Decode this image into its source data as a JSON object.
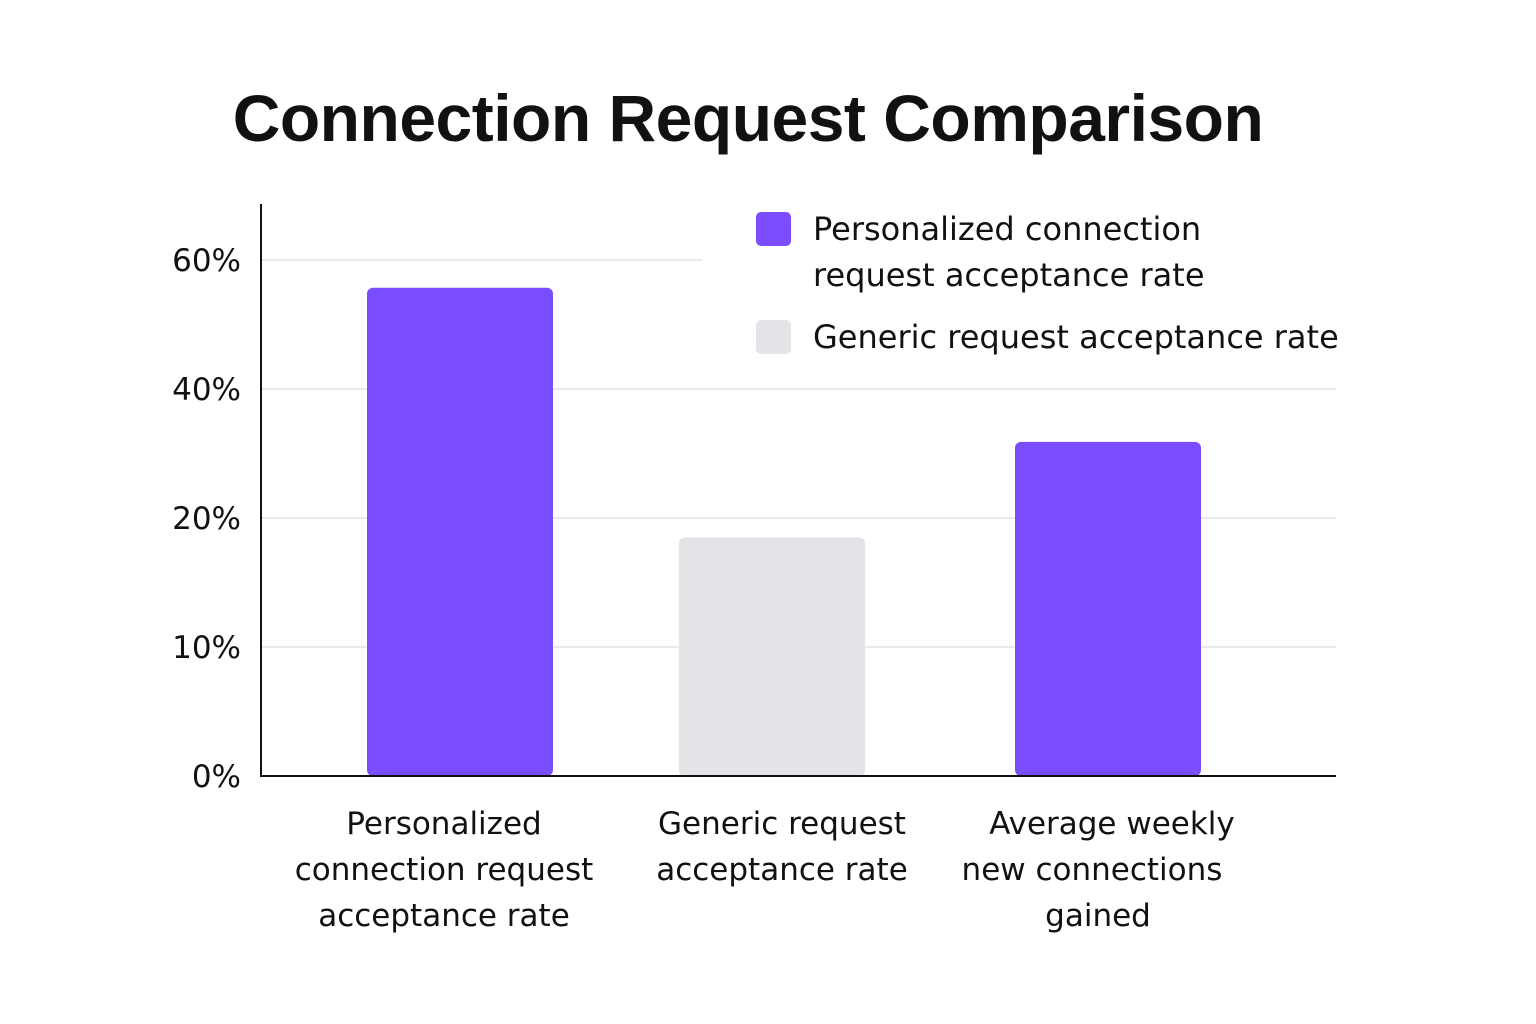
{
  "chart_data": {
    "type": "bar",
    "title": "Connection Request Comparison",
    "xlabel": "",
    "ylabel": "",
    "y_ticks": [
      {
        "value": 0,
        "label": "0%"
      },
      {
        "value": 10,
        "label": "10%"
      },
      {
        "value": 20,
        "label": "20%"
      },
      {
        "value": 40,
        "label": "40%"
      },
      {
        "value": 60,
        "label": "60%"
      }
    ],
    "categories": [
      {
        "lines": [
          "Personalized",
          "connection request",
          "acceptance rate"
        ]
      },
      {
        "lines": [
          "Generic request",
          "acceptance rate"
        ]
      },
      {
        "lines": [
          "Average weekly",
          "new connections",
          "gained"
        ]
      }
    ],
    "values": [
      55.7,
      18.5,
      31.8
    ],
    "bar_colors": [
      "#7a4dff",
      "#e3e3e8",
      "#7a4dff"
    ],
    "legend": {
      "position": "top-right",
      "items": [
        {
          "lines": [
            "Personalized connection",
            "request acceptance rate"
          ],
          "color": "#7a4dff"
        },
        {
          "lines": [
            "Generic request acceptance rate"
          ],
          "color": "#e3e3e8"
        }
      ]
    },
    "grid": true
  }
}
